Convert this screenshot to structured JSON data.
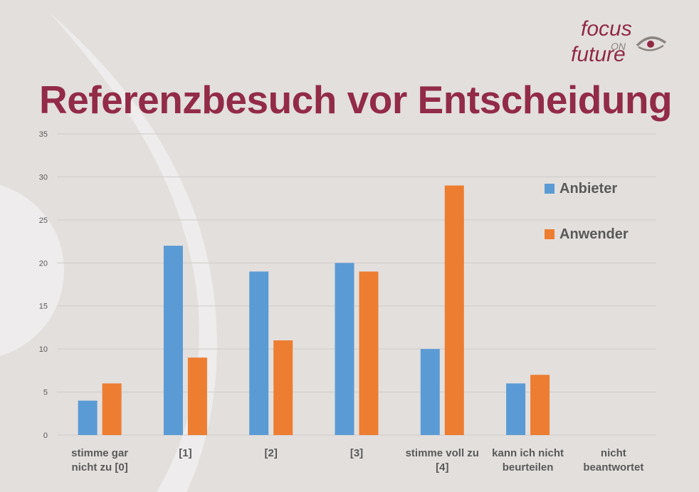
{
  "logo": {
    "line1": "focus",
    "line2": "ON",
    "line3": "future"
  },
  "title": "Referenzbesuch vor Entscheidung",
  "colors": {
    "anbieter": "#5b9bd5",
    "anwender": "#ed7d31",
    "title": "#922b47"
  },
  "legend": [
    {
      "label": "Anbieter",
      "color": "#5b9bd5"
    },
    {
      "label": "Anwender",
      "color": "#ed7d31"
    }
  ],
  "chart_data": {
    "type": "bar",
    "categories": [
      [
        "stimme gar",
        "nicht zu [0]"
      ],
      [
        "[1]"
      ],
      [
        "[2]"
      ],
      [
        "[3]"
      ],
      [
        "stimme voll zu",
        "[4]"
      ],
      [
        "kann ich nicht",
        "beurteilen"
      ],
      [
        "nicht",
        "beantwortet"
      ]
    ],
    "series": [
      {
        "name": "Anbieter",
        "color": "#5b9bd5",
        "values": [
          4,
          22,
          19,
          20,
          10,
          6,
          0
        ]
      },
      {
        "name": "Anwender",
        "color": "#ed7d31",
        "values": [
          6,
          9,
          11,
          19,
          29,
          7,
          0
        ]
      }
    ],
    "ylim": [
      0,
      35
    ],
    "yticks": [
      0,
      5,
      10,
      15,
      20,
      25,
      30,
      35
    ],
    "grid": true,
    "legend_position": "top-right"
  }
}
